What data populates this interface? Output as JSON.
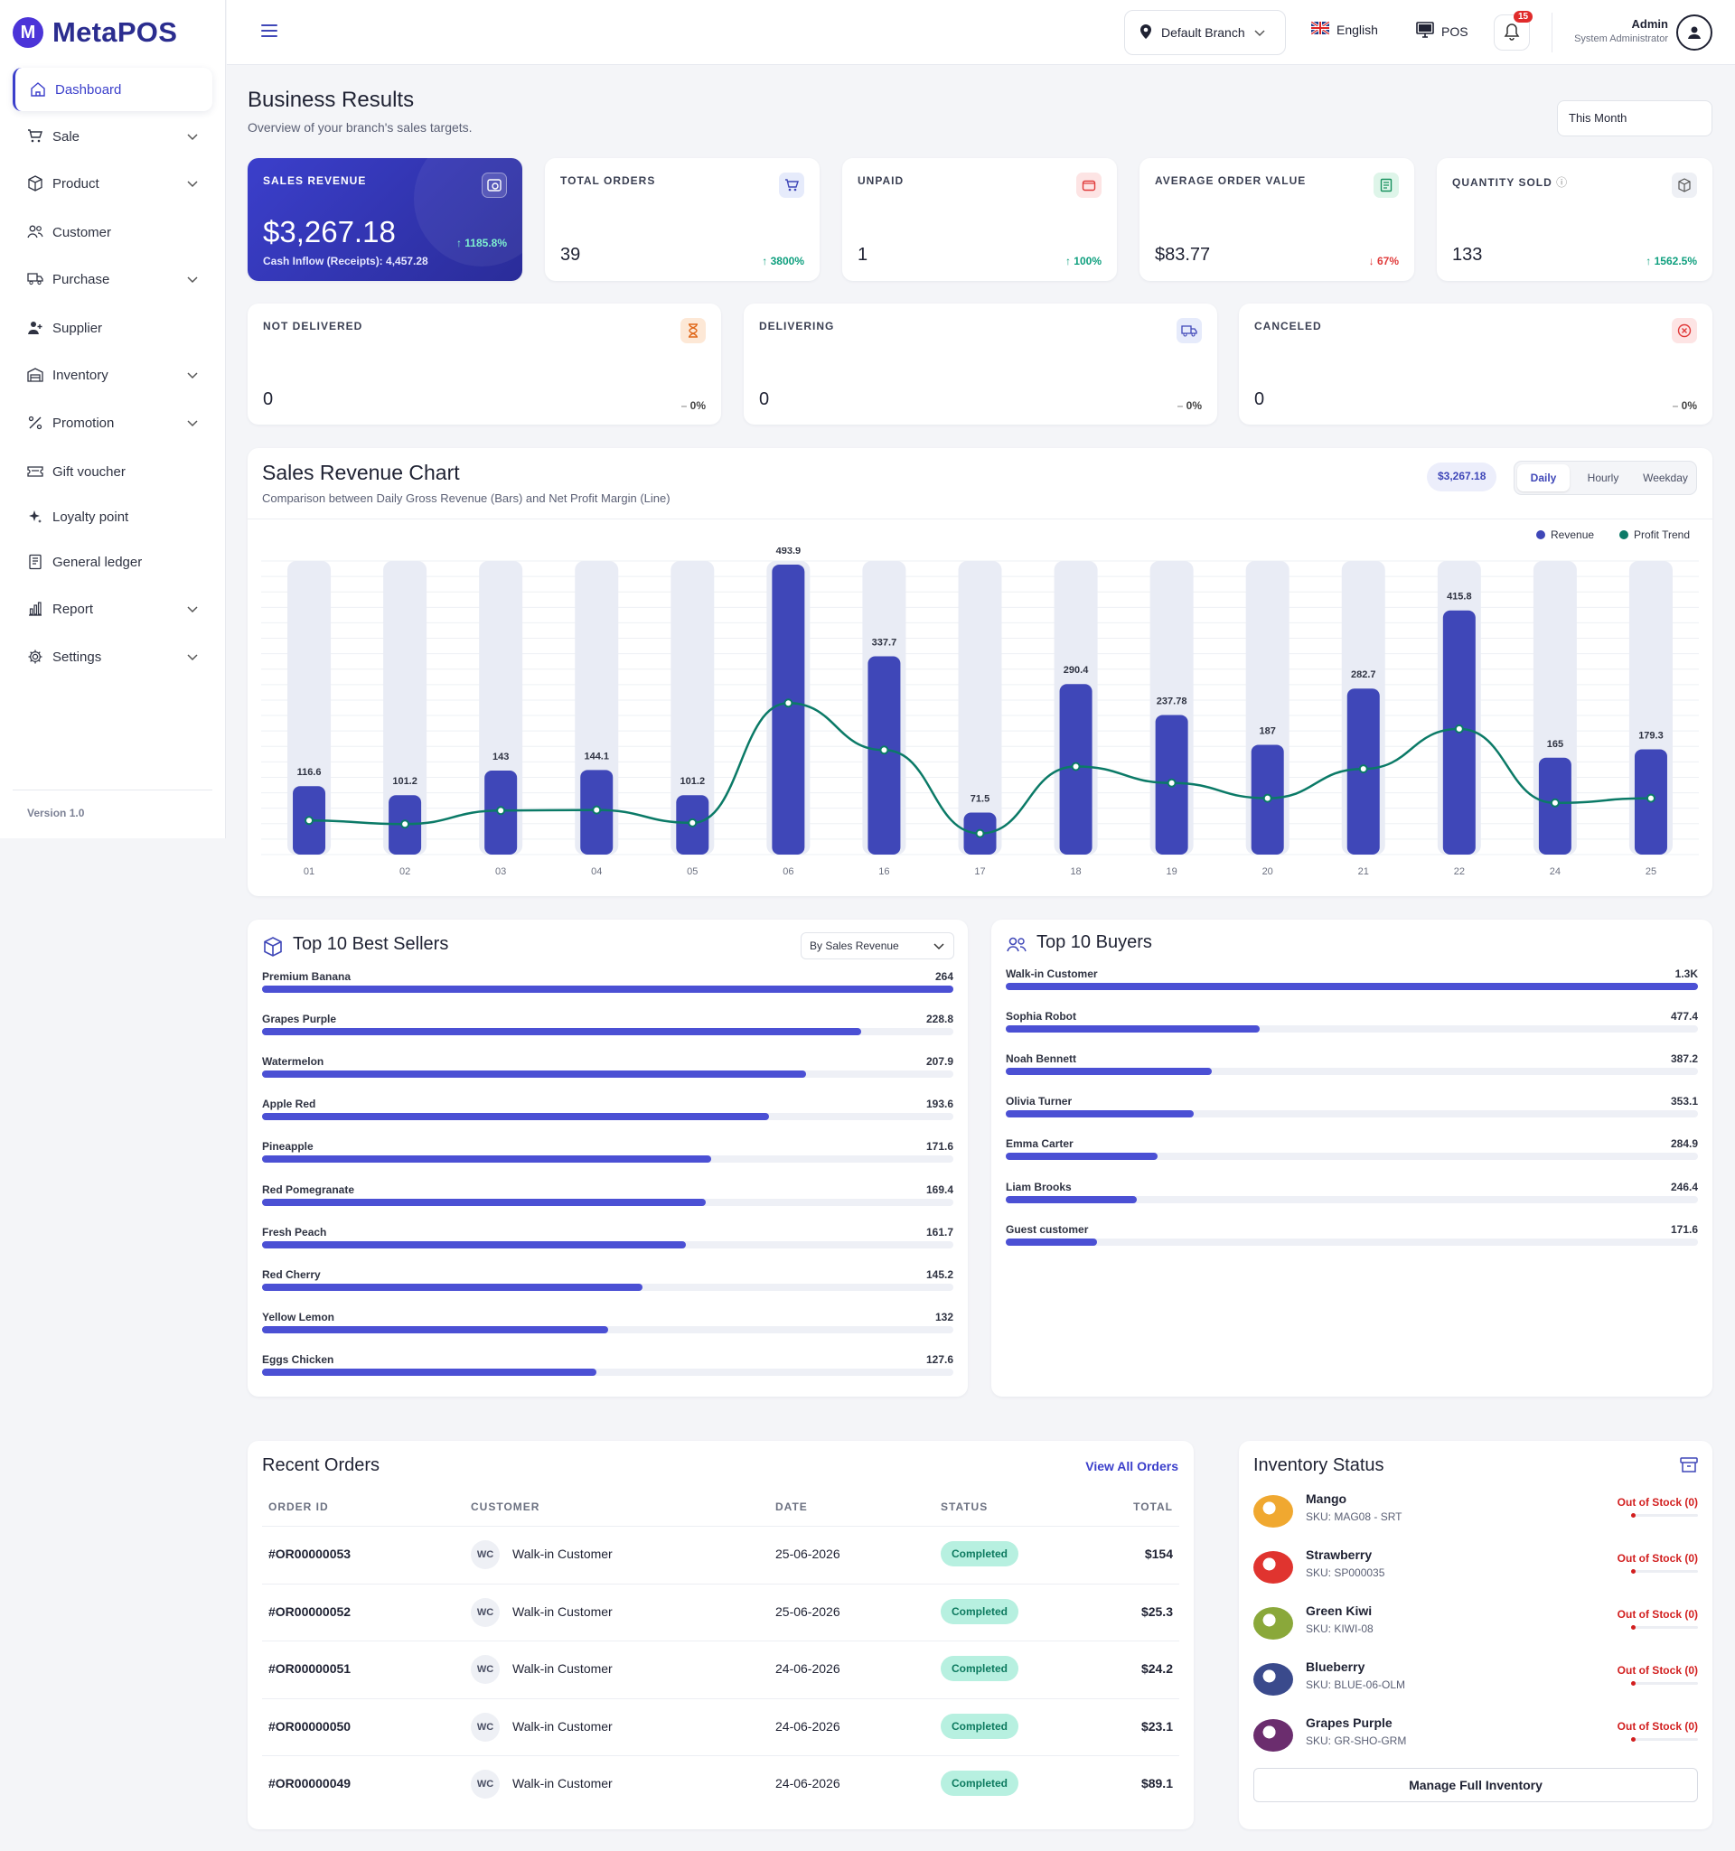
{
  "app": {
    "name": "MetaPOS",
    "logo_letter": "M",
    "version": "Version 1.0"
  },
  "sidebar": {
    "items": [
      {
        "label": "Dashboard",
        "icon": "home-icon",
        "active": true,
        "expandable": false
      },
      {
        "label": "Sale",
        "icon": "cart-icon",
        "expandable": true
      },
      {
        "label": "Product",
        "icon": "box-icon",
        "expandable": true
      },
      {
        "label": "Customer",
        "icon": "users-icon",
        "expandable": false
      },
      {
        "label": "Purchase",
        "icon": "truck-icon",
        "expandable": true
      },
      {
        "label": "Supplier",
        "icon": "user-plus-icon",
        "expandable": false
      },
      {
        "label": "Inventory",
        "icon": "warehouse-icon",
        "expandable": true
      },
      {
        "label": "Promotion",
        "icon": "percent-icon",
        "expandable": true
      },
      {
        "label": "Gift voucher",
        "icon": "ticket-icon",
        "expandable": false
      },
      {
        "label": "Loyalty point",
        "icon": "sparkle-icon",
        "expandable": false
      },
      {
        "label": "General ledger",
        "icon": "ledger-icon",
        "expandable": false
      },
      {
        "label": "Report",
        "icon": "bar-chart-icon",
        "expandable": true
      },
      {
        "label": "Settings",
        "icon": "gear-icon",
        "expandable": true
      }
    ]
  },
  "topbar": {
    "branch": "Default Branch",
    "language": "English",
    "pos": "POS",
    "notifications": "15",
    "user_name": "Admin",
    "user_role": "System Administrator"
  },
  "page": {
    "title": "Business Results",
    "subtitle": "Overview of your branch's sales targets.",
    "period": "This Month"
  },
  "kpis": {
    "sales_revenue": {
      "label": "SALES REVENUE",
      "value": "$3,267.18",
      "trend": "1185.8%",
      "sub": "Cash Inflow (Receipts): 4,457.28"
    },
    "total_orders": {
      "label": "TOTAL ORDERS",
      "value": "39",
      "trend": "3800%"
    },
    "unpaid": {
      "label": "UNPAID",
      "value": "1",
      "trend": "100%"
    },
    "avg_order": {
      "label": "AVERAGE ORDER VALUE",
      "value": "$83.77",
      "trend": "67%"
    },
    "qty_sold": {
      "label": "QUANTITY SOLD",
      "value": "133",
      "trend": "1562.5%"
    },
    "not_delivered": {
      "label": "NOT DELIVERED",
      "value": "0",
      "trend": "0%"
    },
    "delivering": {
      "label": "DELIVERING",
      "value": "0",
      "trend": "0%"
    },
    "canceled": {
      "label": "CANCELED",
      "value": "0",
      "trend": "0%"
    }
  },
  "colors": {
    "accent": "#3f47b8",
    "bar": "#3f47b8",
    "bar_bg": "#e9ecf5",
    "line": "#0b7a67",
    "success": "#0e9f7e",
    "danger": "#e03a3a"
  },
  "revenue_chart": {
    "title": "Sales Revenue Chart",
    "subtitle": "Comparison between Daily Gross Revenue (Bars) and Net Profit Margin (Line)",
    "total_badge": "$3,267.18",
    "tabs": [
      "Daily",
      "Hourly",
      "Weekday"
    ],
    "active_tab": "Daily"
  },
  "chart_data": {
    "type": "bar",
    "title": "Sales Revenue Chart",
    "categories": [
      "01",
      "02",
      "03",
      "04",
      "05",
      "06",
      "16",
      "17",
      "18",
      "19",
      "20",
      "21",
      "22",
      "24",
      "25"
    ],
    "series": [
      {
        "name": "Revenue",
        "values": [
          116.6,
          101.2,
          143,
          144.1,
          101.2,
          493.9,
          337.7,
          71.5,
          290.4,
          237.78,
          187,
          282.7,
          415.8,
          165,
          179.3
        ]
      },
      {
        "name": "Profit Trend",
        "values": [
          58,
          52,
          75,
          76,
          54,
          258,
          178,
          36,
          150,
          122,
          96,
          146,
          214,
          88,
          96
        ]
      }
    ],
    "ylim": [
      0,
      500
    ],
    "legend": "top-right",
    "grid": true
  },
  "best_sellers": {
    "title": "Top 10 Best Sellers",
    "filter": "By Sales Revenue",
    "max": 264,
    "items": [
      {
        "name": "Premium Banana",
        "value": "264",
        "num": 264
      },
      {
        "name": "Grapes Purple",
        "value": "228.8",
        "num": 228.8
      },
      {
        "name": "Watermelon",
        "value": "207.9",
        "num": 207.9
      },
      {
        "name": "Apple Red",
        "value": "193.6",
        "num": 193.6
      },
      {
        "name": "Pineapple",
        "value": "171.6",
        "num": 171.6
      },
      {
        "name": "Red Pomegranate",
        "value": "169.4",
        "num": 169.4
      },
      {
        "name": "Fresh Peach",
        "value": "161.7",
        "num": 161.7
      },
      {
        "name": "Red Cherry",
        "value": "145.2",
        "num": 145.2
      },
      {
        "name": "Yellow Lemon",
        "value": "132",
        "num": 132
      },
      {
        "name": "Eggs Chicken",
        "value": "127.6",
        "num": 127.6
      }
    ]
  },
  "top_buyers": {
    "title": "Top 10 Buyers",
    "max": 1300,
    "items": [
      {
        "name": "Walk-in Customer",
        "value": "1.3K",
        "num": 1300
      },
      {
        "name": "Sophia Robot",
        "value": "477.4",
        "num": 477.4
      },
      {
        "name": "Noah Bennett",
        "value": "387.2",
        "num": 387.2
      },
      {
        "name": "Olivia Turner",
        "value": "353.1",
        "num": 353.1
      },
      {
        "name": "Emma Carter",
        "value": "284.9",
        "num": 284.9
      },
      {
        "name": "Liam Brooks",
        "value": "246.4",
        "num": 246.4
      },
      {
        "name": "Guest customer",
        "value": "171.6",
        "num": 171.6
      }
    ]
  },
  "recent_orders": {
    "title": "Recent Orders",
    "view_all": "View All Orders",
    "columns": [
      "ORDER ID",
      "CUSTOMER",
      "DATE",
      "STATUS",
      "TOTAL"
    ],
    "rows": [
      {
        "id": "#OR00000053",
        "initials": "WC",
        "customer": "Walk-in Customer",
        "date": "25-06-2026",
        "status": "Completed",
        "total": "$154"
      },
      {
        "id": "#OR00000052",
        "initials": "WC",
        "customer": "Walk-in Customer",
        "date": "25-06-2026",
        "status": "Completed",
        "total": "$25.3"
      },
      {
        "id": "#OR00000051",
        "initials": "WC",
        "customer": "Walk-in Customer",
        "date": "24-06-2026",
        "status": "Completed",
        "total": "$24.2"
      },
      {
        "id": "#OR00000050",
        "initials": "WC",
        "customer": "Walk-in Customer",
        "date": "24-06-2026",
        "status": "Completed",
        "total": "$23.1"
      },
      {
        "id": "#OR00000049",
        "initials": "WC",
        "customer": "Walk-in Customer",
        "date": "24-06-2026",
        "status": "Completed",
        "total": "$89.1"
      }
    ]
  },
  "inventory": {
    "title": "Inventory Status",
    "button": "Manage Full Inventory",
    "items": [
      {
        "name": "Mango",
        "sku": "SKU: MAG08 - SRT",
        "status": "Out of Stock (0)",
        "color": "#f0a830"
      },
      {
        "name": "Strawberry",
        "sku": "SKU: SP000035",
        "status": "Out of Stock (0)",
        "color": "#e0342f"
      },
      {
        "name": "Green Kiwi",
        "sku": "SKU: KIWI-08",
        "status": "Out of Stock (0)",
        "color": "#8aa83a"
      },
      {
        "name": "Blueberry",
        "sku": "SKU: BLUE-06-OLM",
        "status": "Out of Stock (0)",
        "color": "#3a4a8c"
      },
      {
        "name": "Grapes Purple",
        "sku": "SKU: GR-SHO-GRM",
        "status": "Out of Stock (0)",
        "color": "#6b2d6e"
      }
    ]
  }
}
